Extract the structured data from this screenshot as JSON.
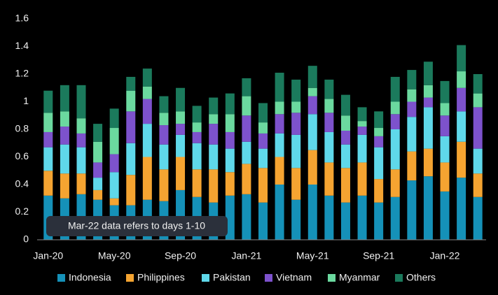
{
  "chart_data": {
    "type": "stacked_bar",
    "categories": [
      "Jan-20",
      null,
      null,
      null,
      "May-20",
      null,
      null,
      null,
      "Sep-20",
      null,
      null,
      null,
      "Jan-21",
      null,
      null,
      null,
      "May-21",
      null,
      null,
      null,
      "Sep-21",
      null,
      null,
      null,
      "Jan-22",
      null,
      null
    ],
    "series": [
      {
        "name": "Indonesia",
        "color": "#1591b8",
        "values": [
          0.32,
          0.3,
          0.33,
          0.29,
          0.25,
          0.25,
          0.29,
          0.28,
          0.36,
          0.31,
          0.27,
          0.32,
          0.33,
          0.27,
          0.4,
          0.29,
          0.4,
          0.32,
          0.27,
          0.32,
          0.27,
          0.31,
          0.43,
          0.46,
          0.35,
          0.45,
          0.31
        ]
      },
      {
        "name": "Philippines",
        "color": "#f5a431",
        "values": [
          0.18,
          0.18,
          0.15,
          0.07,
          0.05,
          0.22,
          0.31,
          0.23,
          0.24,
          0.2,
          0.24,
          0.17,
          0.22,
          0.25,
          0.2,
          0.23,
          0.25,
          0.24,
          0.25,
          0.24,
          0.17,
          0.2,
          0.21,
          0.2,
          0.21,
          0.26,
          0.17
        ]
      },
      {
        "name": "Pakistan",
        "color": "#5fd8ea",
        "values": [
          0.17,
          0.21,
          0.19,
          0.09,
          0.19,
          0.23,
          0.24,
          0.18,
          0.16,
          0.19,
          0.18,
          0.17,
          0.16,
          0.14,
          0.17,
          0.24,
          0.26,
          0.22,
          0.17,
          0.2,
          0.23,
          0.29,
          0.25,
          0.3,
          0.19,
          0.22,
          0.18
        ]
      },
      {
        "name": "Vietnam",
        "color": "#7d52cc",
        "values": [
          0.11,
          0.13,
          0.1,
          0.11,
          0.13,
          0.23,
          0.18,
          0.14,
          0.08,
          0.08,
          0.15,
          0.12,
          0.19,
          0.11,
          0.14,
          0.16,
          0.13,
          0.14,
          0.1,
          0.06,
          0.08,
          0.11,
          0.11,
          0.07,
          0.15,
          0.17,
          0.3
        ]
      },
      {
        "name": "Myanmar",
        "color": "#6bd99f",
        "values": [
          0.14,
          0.11,
          0.11,
          0.15,
          0.19,
          0.15,
          0.09,
          0.09,
          0.09,
          0.07,
          0.07,
          0.13,
          0.14,
          0.08,
          0.09,
          0.08,
          0.06,
          0.1,
          0.11,
          0.04,
          0.06,
          0.09,
          0.09,
          0.09,
          0.09,
          0.12,
          0.1
        ]
      },
      {
        "name": "Others",
        "color": "#1b7a5c",
        "values": [
          0.16,
          0.19,
          0.24,
          0.13,
          0.14,
          0.1,
          0.13,
          0.12,
          0.17,
          0.12,
          0.12,
          0.15,
          0.13,
          0.14,
          0.21,
          0.16,
          0.16,
          0.14,
          0.15,
          0.1,
          0.12,
          0.18,
          0.14,
          0.17,
          0.16,
          0.19,
          0.14
        ]
      }
    ],
    "ylim": [
      0,
      1.6
    ],
    "yticks": [
      0,
      0.2,
      0.4,
      0.6,
      0.8,
      1,
      1.2,
      1.4,
      1.6
    ],
    "annotation": "Mar-22 data refers to days 1-10"
  }
}
